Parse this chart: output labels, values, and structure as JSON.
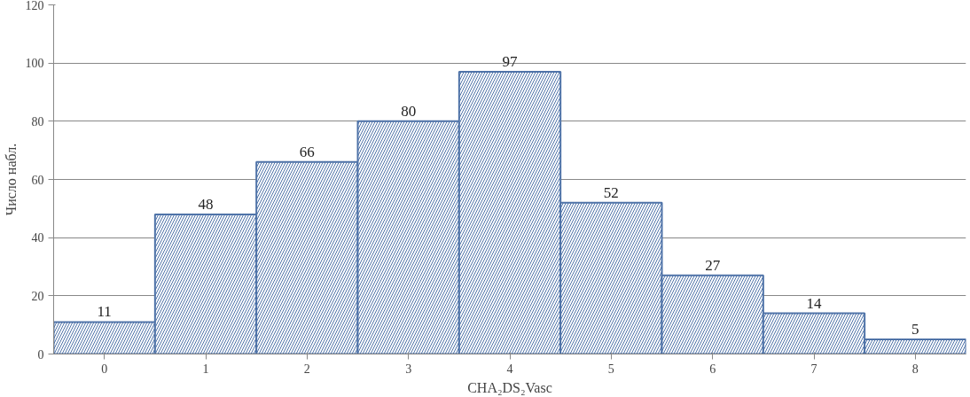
{
  "chart_data": {
    "type": "bar",
    "xlabel": "CHA₂DS₂Vasc",
    "ylabel": "Число набл.",
    "categories": [
      "0",
      "1",
      "2",
      "3",
      "4",
      "5",
      "6",
      "7",
      "8"
    ],
    "values": [
      11,
      48,
      66,
      80,
      97,
      52,
      27,
      14,
      5
    ],
    "color": "#4f73a8",
    "ylim": [
      0,
      120
    ],
    "yticks": [
      0,
      20,
      40,
      60,
      80,
      100,
      120
    ],
    "grid": "y",
    "data_labels": true
  }
}
